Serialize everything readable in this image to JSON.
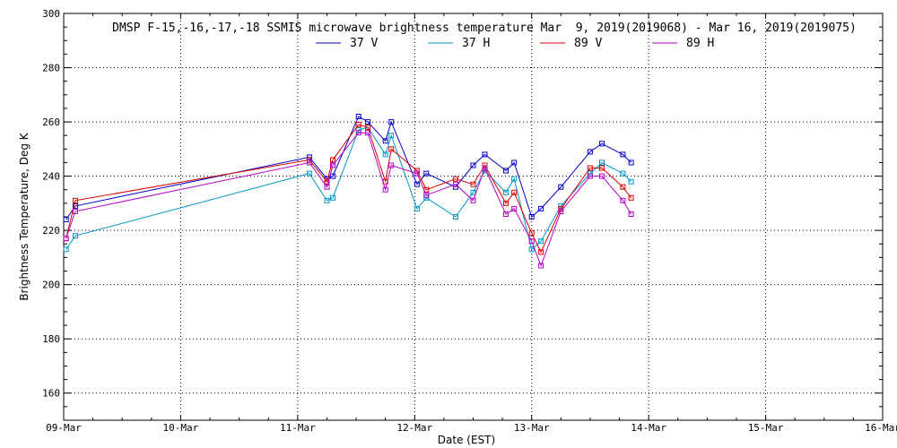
{
  "chart_data": {
    "type": "line",
    "title": "DMSP F-15,-16,-17,-18 SSMIS microwave brightness temperature Mar  9, 2019(2019068) - Mar 16, 2019(2019075)",
    "xlabel": "Date (EST)",
    "ylabel": "Brightness Temperature, Deg K",
    "xlim": [
      0,
      7
    ],
    "ylim": [
      150,
      300
    ],
    "x_ticks": [
      0,
      1,
      2,
      3,
      4,
      5,
      6,
      7
    ],
    "x_tick_labels": [
      "09-Mar",
      "10-Mar",
      "11-Mar",
      "12-Mar",
      "13-Mar",
      "14-Mar",
      "15-Mar",
      "16-Mar"
    ],
    "y_ticks": [
      160,
      180,
      200,
      220,
      240,
      260,
      280,
      300
    ],
    "grid": true,
    "legend_placement": "top-center",
    "series": [
      {
        "name": "37 V",
        "color": "#0000c8",
        "points": [
          [
            0.02,
            224
          ],
          [
            0.1,
            229
          ],
          [
            2.1,
            247
          ],
          [
            2.25,
            239
          ],
          [
            2.3,
            240
          ],
          [
            2.52,
            262
          ],
          [
            2.6,
            260
          ],
          [
            2.75,
            253
          ],
          [
            2.8,
            260
          ],
          [
            3.02,
            237
          ],
          [
            3.1,
            241
          ],
          [
            3.35,
            236
          ],
          [
            3.5,
            244
          ],
          [
            3.6,
            248
          ],
          [
            3.78,
            242
          ],
          [
            3.85,
            245
          ],
          [
            4.0,
            225
          ],
          [
            4.08,
            228
          ],
          [
            4.25,
            236
          ],
          [
            4.5,
            249
          ],
          [
            4.6,
            252
          ],
          [
            4.78,
            248
          ],
          [
            4.85,
            245
          ]
        ]
      },
      {
        "name": "37 H",
        "color": "#0096c8",
        "points": [
          [
            0.02,
            213
          ],
          [
            0.1,
            218
          ],
          [
            2.1,
            241
          ],
          [
            2.25,
            231
          ],
          [
            2.3,
            232
          ],
          [
            2.52,
            257
          ],
          [
            2.6,
            258
          ],
          [
            2.75,
            248
          ],
          [
            2.8,
            255
          ],
          [
            3.02,
            228
          ],
          [
            3.1,
            232
          ],
          [
            3.35,
            225
          ],
          [
            3.5,
            234
          ],
          [
            3.6,
            242
          ],
          [
            3.78,
            234
          ],
          [
            3.85,
            239
          ],
          [
            4.0,
            213
          ],
          [
            4.08,
            216
          ],
          [
            4.25,
            229
          ],
          [
            4.5,
            241
          ],
          [
            4.6,
            245
          ],
          [
            4.78,
            241
          ],
          [
            4.85,
            238
          ]
        ]
      },
      {
        "name": "89 V",
        "color": "#dc0000",
        "points": [
          [
            0.02,
            217
          ],
          [
            0.1,
            231
          ],
          [
            2.1,
            246
          ],
          [
            2.25,
            238
          ],
          [
            2.3,
            246
          ],
          [
            2.52,
            259
          ],
          [
            2.6,
            258
          ],
          [
            2.75,
            238
          ],
          [
            2.8,
            250
          ],
          [
            3.02,
            242
          ],
          [
            3.1,
            235
          ],
          [
            3.35,
            239
          ],
          [
            3.5,
            237
          ],
          [
            3.6,
            244
          ],
          [
            3.78,
            230
          ],
          [
            3.85,
            234
          ],
          [
            4.0,
            219
          ],
          [
            4.08,
            212
          ],
          [
            4.25,
            228
          ],
          [
            4.5,
            243
          ],
          [
            4.6,
            243
          ],
          [
            4.78,
            236
          ],
          [
            4.85,
            232
          ]
        ]
      },
      {
        "name": "89 H",
        "color": "#b400c8",
        "points": [
          [
            0.02,
            217
          ],
          [
            0.1,
            227
          ],
          [
            2.1,
            245
          ],
          [
            2.25,
            236
          ],
          [
            2.3,
            244
          ],
          [
            2.52,
            256
          ],
          [
            2.6,
            256
          ],
          [
            2.75,
            235
          ],
          [
            2.8,
            244
          ],
          [
            3.02,
            241
          ],
          [
            3.1,
            233
          ],
          [
            3.35,
            237
          ],
          [
            3.5,
            231
          ],
          [
            3.6,
            243
          ],
          [
            3.78,
            226
          ],
          [
            3.85,
            228
          ],
          [
            4.0,
            216
          ],
          [
            4.08,
            207
          ],
          [
            4.25,
            227
          ],
          [
            4.5,
            240
          ],
          [
            4.6,
            240
          ],
          [
            4.78,
            231
          ],
          [
            4.85,
            226
          ]
        ]
      }
    ]
  }
}
